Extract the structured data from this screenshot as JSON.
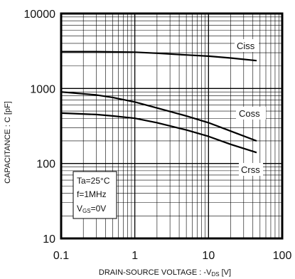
{
  "chart_data": {
    "type": "line",
    "title": "",
    "xlabel": "DRAIN-SOURCE VOLTAGE : -V",
    "xlabel_sub": "DS",
    "xlabel_unit": " [V]",
    "ylabel": "CAPACITANCE : C [pF]",
    "xscale": "log",
    "yscale": "log",
    "xlim": [
      0.1,
      100
    ],
    "ylim": [
      10,
      10000
    ],
    "x_ticks": [
      "0.1",
      "1",
      "10",
      "100"
    ],
    "y_ticks": [
      "10",
      "100",
      "1000",
      "10000"
    ],
    "grid": true,
    "conditions": {
      "line1": "Ta=25°C",
      "line2": "f=1MHz",
      "line3_main": "V",
      "line3_sub": "GS",
      "line3_rest": "=0V"
    },
    "series": [
      {
        "name": "Ciss",
        "x": [
          0.1,
          0.3,
          1,
          2,
          5,
          10,
          20,
          45
        ],
        "y": [
          3100,
          3100,
          3050,
          2950,
          2800,
          2700,
          2550,
          2350
        ]
      },
      {
        "name": "Coss",
        "x": [
          0.1,
          0.3,
          0.5,
          1,
          2,
          5,
          10,
          20,
          45
        ],
        "y": [
          900,
          820,
          760,
          660,
          550,
          430,
          350,
          270,
          200
        ]
      },
      {
        "name": "Crss",
        "x": [
          0.1,
          0.3,
          0.5,
          1,
          2,
          5,
          10,
          20,
          45
        ],
        "y": [
          470,
          450,
          430,
          400,
          350,
          280,
          230,
          180,
          140
        ]
      }
    ]
  }
}
